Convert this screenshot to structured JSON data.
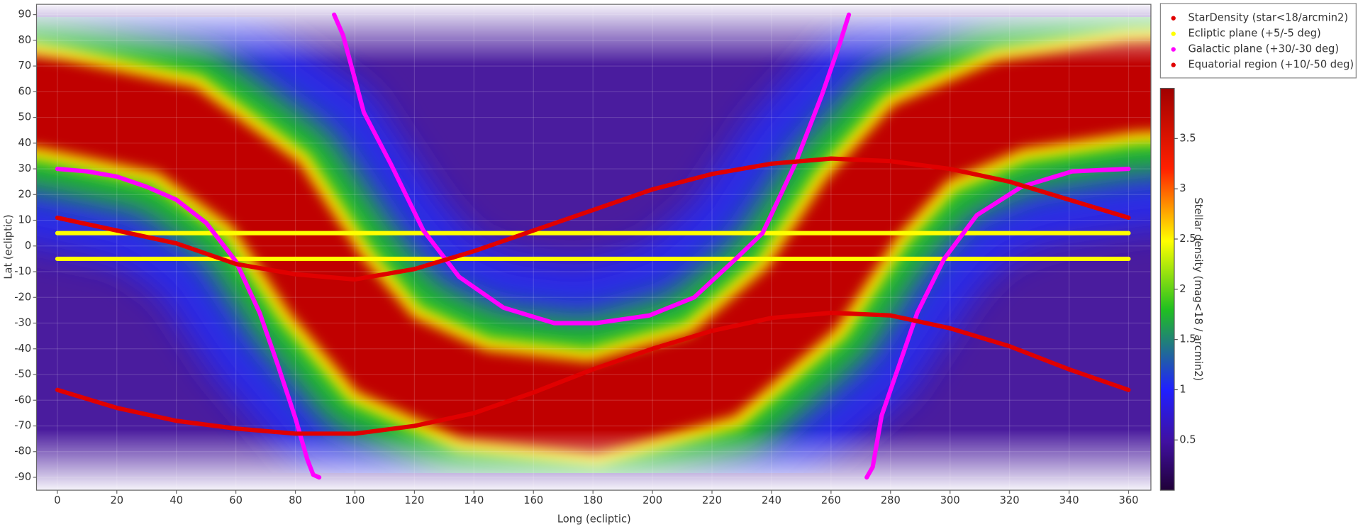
{
  "chart_data": {
    "type": "line",
    "xlabel": "Long (ecliptic)",
    "ylabel": "Lat (ecliptic)",
    "xlim": [
      -7,
      367.5
    ],
    "ylim": [
      -95,
      94
    ],
    "xticks": [
      0,
      20,
      40,
      60,
      80,
      100,
      120,
      140,
      160,
      180,
      200,
      220,
      240,
      260,
      280,
      300,
      320,
      340,
      360
    ],
    "yticks": [
      -90,
      -80,
      -70,
      -60,
      -50,
      -40,
      -30,
      -20,
      -10,
      0,
      10,
      20,
      30,
      40,
      50,
      60,
      70,
      80,
      90
    ],
    "grid": true,
    "series": [
      {
        "name": "StarDensity (star<18/arcmin2)",
        "color": "#e00000"
      },
      {
        "name": "Ecliptic plane (+5/-5 deg)",
        "color": "#ffff00",
        "x": [
          0,
          360,
          null,
          0,
          360
        ],
        "values": [
          5,
          5,
          null,
          -5,
          -5
        ]
      },
      {
        "name": "Galactic plane (+30/-30 deg)",
        "color": "#ff00ff",
        "x": [
          0,
          10,
          20,
          30,
          40,
          50,
          60,
          68,
          74,
          80,
          84,
          86,
          88,
          null,
          93,
          96,
          103,
          112,
          123,
          135,
          150,
          167,
          181,
          199,
          214,
          228,
          237,
          248,
          257,
          263,
          266,
          null,
          272,
          274,
          277,
          283,
          289,
          298,
          309,
          324,
          341,
          360
        ],
        "values": [
          30,
          29,
          27,
          23,
          18,
          9,
          -6,
          -26,
          -46,
          -67,
          -83,
          -89,
          -90,
          null,
          90,
          82,
          52,
          32,
          6,
          -12,
          -24,
          -30,
          -30,
          -27,
          -20,
          -5,
          5,
          32,
          59,
          79,
          90,
          null,
          -90,
          -86,
          -66,
          -46,
          -26,
          -5,
          12,
          23,
          29,
          30
        ]
      },
      {
        "name": "Equatorial region (+10/-50 deg)",
        "color": "#e00000",
        "x": [
          0,
          20,
          40,
          60,
          80,
          100,
          120,
          140,
          160,
          180,
          200,
          220,
          240,
          260,
          280,
          300,
          320,
          340,
          360,
          null,
          0,
          20,
          40,
          60,
          80,
          100,
          120,
          140,
          160,
          180,
          200,
          220,
          240,
          260,
          280,
          300,
          320,
          340,
          360
        ],
        "values": [
          11,
          6,
          1,
          -7,
          -11,
          -13,
          -9,
          -2,
          6,
          14,
          22,
          28,
          32,
          34,
          33,
          30,
          25,
          18,
          11,
          null,
          -56,
          -63,
          -68,
          -71,
          -73,
          -73,
          -70,
          -65,
          -57,
          -48,
          -40,
          -33,
          -28,
          -26,
          -27,
          -32,
          -39,
          -48,
          -56
        ]
      }
    ],
    "colorbar": {
      "label": "Stellar density (mag<18 / arcmin2)",
      "lim": [
        0,
        4
      ],
      "ticks": [
        0.5,
        1,
        1.5,
        2,
        2.5,
        3,
        3.5
      ]
    }
  }
}
